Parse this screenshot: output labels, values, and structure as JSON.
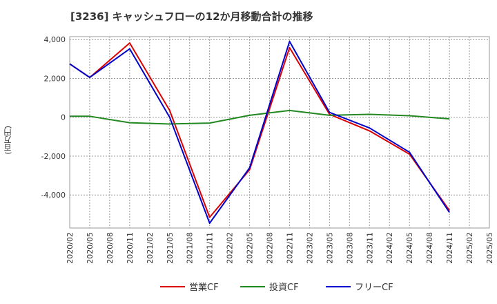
{
  "chart_data": {
    "type": "line",
    "title": "[3236]  キャッシュフローの12か月移動合計の推移",
    "ylabel": "(百万円)",
    "xlabel": "",
    "ylim": [
      -5700,
      4150
    ],
    "yticks": [
      -4000,
      -2000,
      0,
      2000,
      4000
    ],
    "ytick_labels": [
      "-4,000",
      "-2,000",
      "0",
      "2,000",
      "4,000"
    ],
    "categories": [
      "2020/02",
      "2020/05",
      "2020/08",
      "2020/11",
      "2021/02",
      "2021/05",
      "2021/08",
      "2021/11",
      "2022/02",
      "2022/05",
      "2022/08",
      "2022/11",
      "2023/02",
      "2023/05",
      "2023/08",
      "2023/11",
      "2024/02",
      "2024/05",
      "2024/08",
      "2024/11",
      "2025/02",
      "2025/05"
    ],
    "series": [
      {
        "name": "営業CF",
        "color": "#dd0000",
        "values": [
          2750,
          2050,
          null,
          3820,
          null,
          350,
          null,
          -5150,
          null,
          -2700,
          null,
          3580,
          null,
          150,
          null,
          -700,
          null,
          -1900,
          null,
          -4800,
          null,
          null
        ]
      },
      {
        "name": "投資CF",
        "color": "#228822",
        "values": [
          50,
          50,
          null,
          -280,
          null,
          -350,
          null,
          -300,
          null,
          100,
          null,
          350,
          null,
          100,
          null,
          150,
          null,
          80,
          null,
          -80,
          null,
          null
        ]
      },
      {
        "name": "フリーCF",
        "color": "#0000cc",
        "values": [
          2750,
          2050,
          null,
          3520,
          null,
          0,
          null,
          -5450,
          null,
          -2600,
          null,
          3900,
          null,
          250,
          null,
          -550,
          null,
          -1800,
          null,
          -4900,
          null,
          null
        ]
      }
    ],
    "legend_position": "bottom",
    "grid": true
  }
}
